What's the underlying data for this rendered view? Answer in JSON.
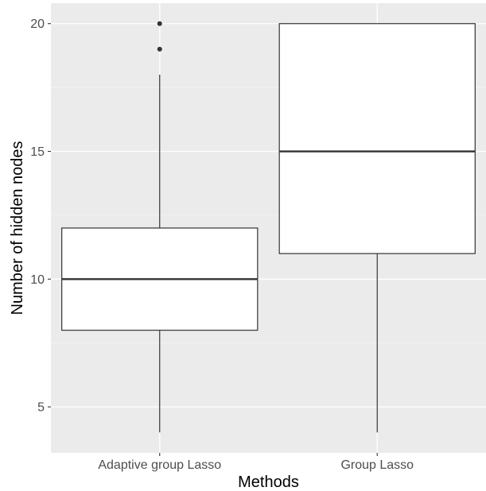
{
  "chart_data": {
    "type": "boxplot",
    "xlabel": "Methods",
    "ylabel": "Number of hidden nodes",
    "ylim": [
      3.2,
      20.8
    ],
    "yticks": [
      5,
      10,
      15,
      20
    ],
    "grid": true,
    "categories": [
      "Adaptive group Lasso",
      "Group Lasso"
    ],
    "boxes": [
      {
        "category": "Adaptive group Lasso",
        "lower_whisker": 4,
        "q1": 8,
        "median": 10,
        "q3": 12,
        "upper_whisker": 18,
        "outliers": [
          19,
          20
        ]
      },
      {
        "category": "Group Lasso",
        "lower_whisker": 4,
        "q1": 11,
        "median": 15,
        "q3": 20,
        "upper_whisker": 20,
        "outliers": []
      }
    ],
    "colors": {
      "panel": "#ebebeb",
      "grid_major": "#ffffff",
      "grid_minor": "#f5f5f5",
      "box_fill": "#ffffff",
      "box_line": "#333333",
      "tick_text": "#4d4d4d"
    }
  }
}
